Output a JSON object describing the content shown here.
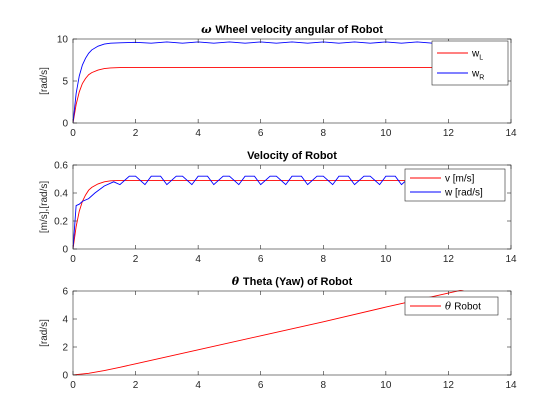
{
  "chart_data": [
    {
      "type": "line",
      "title": "Wheel velocity angular of Robot",
      "title_symbol": "ω",
      "xlabel": "",
      "ylabel": "[rad/s]",
      "xlim": [
        0,
        14
      ],
      "ylim": [
        0,
        10
      ],
      "xticks": [
        0,
        2,
        4,
        6,
        8,
        10,
        12,
        14
      ],
      "yticks": [
        0,
        5,
        10
      ],
      "grid": false,
      "legend_position": "top-right",
      "series": [
        {
          "name": "w",
          "name_sub": "L",
          "color": "#ff0000",
          "x": [
            0,
            0.1,
            0.2,
            0.3,
            0.4,
            0.5,
            0.6,
            0.8,
            1.0,
            1.2,
            1.5,
            2.0,
            3.0,
            4.0,
            6.0,
            8.0,
            10.0,
            12.0,
            12.5
          ],
          "y": [
            0,
            2.2,
            3.7,
            4.7,
            5.3,
            5.75,
            6.0,
            6.3,
            6.48,
            6.55,
            6.6,
            6.62,
            6.62,
            6.62,
            6.62,
            6.62,
            6.62,
            6.62,
            6.62
          ]
        },
        {
          "name": "w",
          "name_sub": "R",
          "color": "#0000ff",
          "x": [
            0,
            0.1,
            0.2,
            0.3,
            0.4,
            0.5,
            0.6,
            0.8,
            1.0,
            1.2,
            1.5,
            2.0,
            2.5,
            3.0,
            3.5,
            4.0,
            4.5,
            5.0,
            5.5,
            6.0,
            6.5,
            7.0,
            7.5,
            8.0,
            8.5,
            9.0,
            9.5,
            10.0,
            10.5,
            11.0,
            11.5,
            12.0,
            12.5
          ],
          "y": [
            0,
            3.5,
            5.6,
            6.9,
            7.7,
            8.3,
            8.7,
            9.15,
            9.4,
            9.5,
            9.55,
            9.6,
            9.5,
            9.65,
            9.5,
            9.65,
            9.5,
            9.65,
            9.5,
            9.65,
            9.5,
            9.65,
            9.5,
            9.65,
            9.5,
            9.65,
            9.5,
            9.65,
            9.5,
            9.65,
            9.5,
            9.6,
            9.6
          ]
        }
      ]
    },
    {
      "type": "line",
      "title": "Velocity of Robot",
      "xlabel": "",
      "ylabel": "[m/s],[rad/s]",
      "xlim": [
        0,
        14
      ],
      "ylim": [
        0,
        0.6
      ],
      "xticks": [
        0,
        2,
        4,
        6,
        8,
        10,
        12,
        14
      ],
      "yticks": [
        0,
        0.2,
        0.4,
        0.6
      ],
      "grid": false,
      "legend_position": "top-right",
      "series": [
        {
          "name": "v [m/s]",
          "color": "#ff0000",
          "x": [
            0,
            0.1,
            0.2,
            0.3,
            0.4,
            0.5,
            0.6,
            0.8,
            1.0,
            1.2,
            1.5,
            2.0,
            4.0,
            6.0,
            8.0,
            10.0,
            12.0,
            12.5
          ],
          "y": [
            0,
            0.16,
            0.27,
            0.34,
            0.385,
            0.42,
            0.44,
            0.465,
            0.48,
            0.487,
            0.49,
            0.49,
            0.49,
            0.49,
            0.49,
            0.49,
            0.49,
            0.49
          ]
        },
        {
          "name": "w [rad/s]",
          "color": "#0000ff",
          "x": [
            0,
            0.1,
            0.2,
            0.3,
            0.5,
            0.7,
            1.0,
            1.3,
            1.5,
            1.8,
            2.0,
            2.3,
            2.5,
            2.8,
            3.0,
            3.3,
            3.5,
            3.8,
            4.0,
            4.3,
            4.5,
            4.8,
            5.0,
            5.3,
            5.5,
            5.8,
            6.0,
            6.3,
            6.5,
            6.8,
            7.0,
            7.3,
            7.5,
            7.8,
            8.0,
            8.3,
            8.5,
            8.8,
            9.0,
            9.3,
            9.5,
            9.8,
            10.0,
            10.3,
            10.5,
            10.7
          ],
          "y": [
            0,
            0.31,
            0.32,
            0.34,
            0.36,
            0.4,
            0.45,
            0.48,
            0.46,
            0.52,
            0.52,
            0.46,
            0.52,
            0.52,
            0.46,
            0.52,
            0.52,
            0.46,
            0.52,
            0.52,
            0.46,
            0.52,
            0.52,
            0.46,
            0.52,
            0.52,
            0.46,
            0.52,
            0.52,
            0.46,
            0.52,
            0.52,
            0.46,
            0.52,
            0.52,
            0.46,
            0.52,
            0.52,
            0.46,
            0.52,
            0.52,
            0.46,
            0.52,
            0.52,
            0.46,
            0.5
          ]
        }
      ]
    },
    {
      "type": "line",
      "title": "Theta (Yaw) of Robot",
      "title_symbol": "θ",
      "xlabel": "",
      "ylabel": "[rad/s]",
      "xlim": [
        0,
        14
      ],
      "ylim": [
        0,
        6
      ],
      "xticks": [
        0,
        2,
        4,
        6,
        8,
        10,
        12,
        14
      ],
      "yticks": [
        0,
        2,
        4,
        6
      ],
      "grid": false,
      "legend_position": "top-right",
      "series": [
        {
          "name": "Robot",
          "name_symbol": "θ",
          "color": "#ff0000",
          "x": [
            0,
            0.5,
            1.0,
            1.5,
            2.0,
            3.0,
            4.0,
            6.0,
            8.0,
            10.0,
            12.0,
            12.5
          ],
          "y": [
            0,
            0.12,
            0.32,
            0.55,
            0.8,
            1.3,
            1.8,
            2.8,
            3.8,
            4.85,
            5.85,
            6.1
          ]
        }
      ]
    }
  ]
}
